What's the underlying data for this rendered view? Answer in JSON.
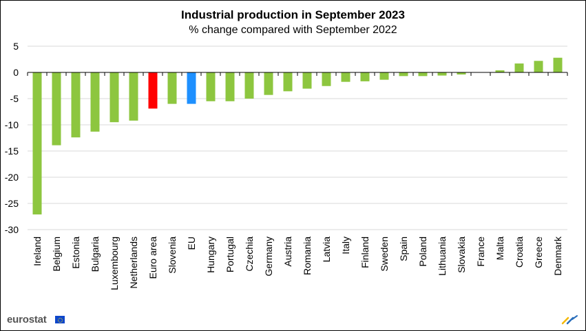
{
  "chart_data": {
    "type": "bar",
    "title": "Industrial production in September 2023",
    "subtitle": "% change compared with September 2022",
    "xlabel": "",
    "ylabel": "",
    "ylim": [
      -30,
      5
    ],
    "yticks": [
      5,
      0,
      -5,
      -10,
      -15,
      -20,
      -25,
      -30
    ],
    "grid": true,
    "categories": [
      "Ireland",
      "Belgium",
      "Estonia",
      "Bulgaria",
      "Luxembourg",
      "Netherlands",
      "Euro area",
      "Slovenia",
      "EU",
      "Hungary",
      "Portugal",
      "Czechia",
      "Germany",
      "Austria",
      "Romania",
      "Latvia",
      "Italy",
      "Finland",
      "Sweden",
      "Spain",
      "Poland",
      "Lithuania",
      "Slovakia",
      "France",
      "Malta",
      "Croatia",
      "Greece",
      "Denmark"
    ],
    "values": [
      -27.1,
      -13.9,
      -12.4,
      -11.3,
      -9.5,
      -9.2,
      -6.9,
      -6.0,
      -6.0,
      -5.5,
      -5.5,
      -5.0,
      -4.3,
      -3.6,
      -3.1,
      -2.6,
      -1.8,
      -1.7,
      -1.4,
      -0.7,
      -0.7,
      -0.6,
      -0.4,
      0.0,
      0.4,
      1.7,
      2.2,
      2.8
    ],
    "colors": {
      "default": "#8dc63f",
      "euro_area": "#ff0000",
      "eu": "#1e90ff",
      "grid": "#d9d9d9",
      "axis": "#000000"
    },
    "highlight": {
      "Euro area": "euro_area",
      "EU": "eu"
    }
  },
  "footer": {
    "logo_text": "eurostat",
    "logo_icon": "eu-flag-icon",
    "corner_icon": "eurostat-mark-icon"
  }
}
